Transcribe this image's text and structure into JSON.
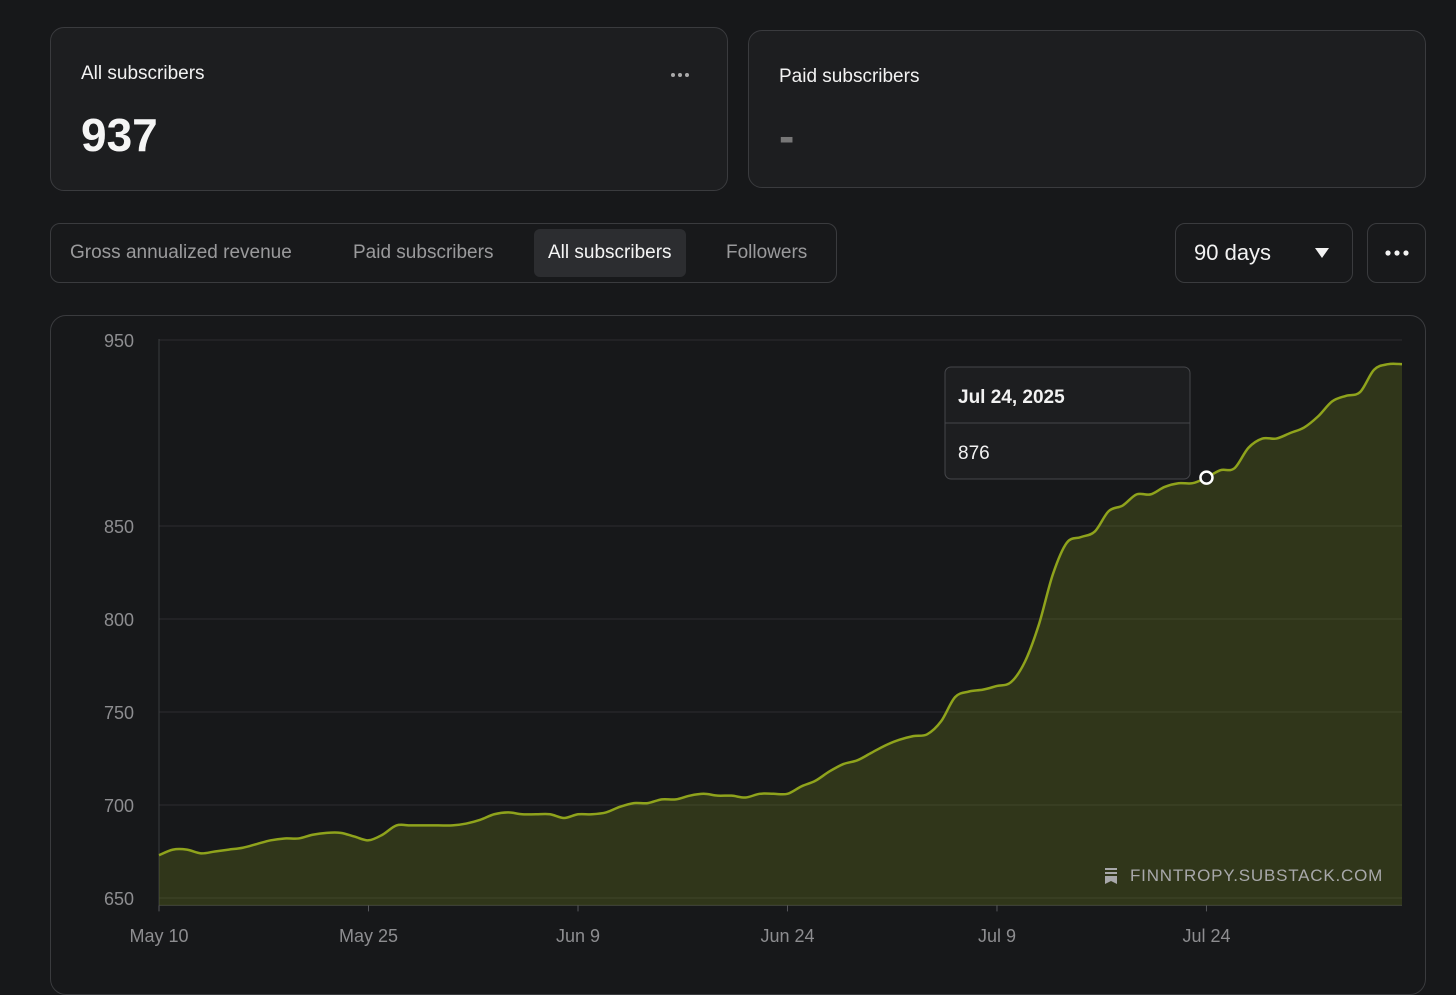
{
  "cards": [
    {
      "label": "All subscribers",
      "value": "937"
    },
    {
      "label": "Paid subscribers",
      "value": "-"
    }
  ],
  "tabs": [
    "Gross annualized revenue",
    "Paid subscribers",
    "All subscribers",
    "Followers"
  ],
  "active_tab": 2,
  "range": "90 days",
  "chart_data": {
    "type": "area",
    "watermark": "FINNTROPY.SUBSTACK.COM",
    "x": [
      "2025-05-10",
      "2025-05-11",
      "2025-05-12",
      "2025-05-13",
      "2025-05-14",
      "2025-05-15",
      "2025-05-16",
      "2025-05-17",
      "2025-05-18",
      "2025-05-19",
      "2025-05-20",
      "2025-05-21",
      "2025-05-22",
      "2025-05-23",
      "2025-05-24",
      "2025-05-25",
      "2025-05-26",
      "2025-05-27",
      "2025-05-28",
      "2025-05-29",
      "2025-05-30",
      "2025-05-31",
      "2025-06-01",
      "2025-06-02",
      "2025-06-03",
      "2025-06-04",
      "2025-06-05",
      "2025-06-06",
      "2025-06-07",
      "2025-06-08",
      "2025-06-09",
      "2025-06-10",
      "2025-06-11",
      "2025-06-12",
      "2025-06-13",
      "2025-06-14",
      "2025-06-15",
      "2025-06-16",
      "2025-06-17",
      "2025-06-18",
      "2025-06-19",
      "2025-06-20",
      "2025-06-21",
      "2025-06-22",
      "2025-06-23",
      "2025-06-24",
      "2025-06-25",
      "2025-06-26",
      "2025-06-27",
      "2025-06-28",
      "2025-06-29",
      "2025-06-30",
      "2025-07-01",
      "2025-07-02",
      "2025-07-03",
      "2025-07-04",
      "2025-07-05",
      "2025-07-06",
      "2025-07-07",
      "2025-07-08",
      "2025-07-09",
      "2025-07-10",
      "2025-07-11",
      "2025-07-12",
      "2025-07-13",
      "2025-07-14",
      "2025-07-15",
      "2025-07-16",
      "2025-07-17",
      "2025-07-18",
      "2025-07-19",
      "2025-07-20",
      "2025-07-21",
      "2025-07-22",
      "2025-07-23",
      "2025-07-24",
      "2025-07-25",
      "2025-07-26",
      "2025-07-27",
      "2025-07-28",
      "2025-07-29",
      "2025-07-30",
      "2025-07-31",
      "2025-08-01",
      "2025-08-02",
      "2025-08-03",
      "2025-08-04",
      "2025-08-05",
      "2025-08-06",
      "2025-08-07"
    ],
    "series": [
      {
        "name": "All subscribers",
        "color": "#8fa31c",
        "values": [
          673,
          676,
          676,
          674,
          675,
          676,
          677,
          679,
          681,
          682,
          682,
          684,
          685,
          685,
          683,
          681,
          684,
          689,
          689,
          689,
          689,
          689,
          690,
          692,
          695,
          696,
          695,
          695,
          695,
          693,
          695,
          695,
          696,
          699,
          701,
          701,
          703,
          703,
          705,
          706,
          705,
          705,
          704,
          706,
          706,
          706,
          710,
          713,
          718,
          722,
          724,
          728,
          732,
          735,
          737,
          738,
          745,
          758,
          761,
          762,
          764,
          766,
          777,
          797,
          824,
          841,
          844,
          847,
          858,
          861,
          867,
          867,
          871,
          873,
          873,
          876,
          880,
          881,
          892,
          897,
          897,
          900,
          903,
          909,
          917,
          920,
          922,
          934,
          937,
          937
        ]
      }
    ],
    "xlim": [
      "2025-05-10",
      "2025-08-07"
    ],
    "xticks": [
      {
        "value": "2025-05-10",
        "label": "May 10"
      },
      {
        "value": "2025-05-25",
        "label": "May 25"
      },
      {
        "value": "2025-06-09",
        "label": "Jun 9"
      },
      {
        "value": "2025-06-24",
        "label": "Jun 24"
      },
      {
        "value": "2025-07-09",
        "label": "Jul 9"
      },
      {
        "value": "2025-07-24",
        "label": "Jul 24"
      }
    ],
    "ylim": [
      646,
      950
    ],
    "yticks": [
      650,
      700,
      750,
      800,
      850,
      950
    ],
    "grid": true,
    "tooltip": {
      "x": "2025-07-24",
      "label": "Jul 24, 2025",
      "value": 876
    }
  }
}
